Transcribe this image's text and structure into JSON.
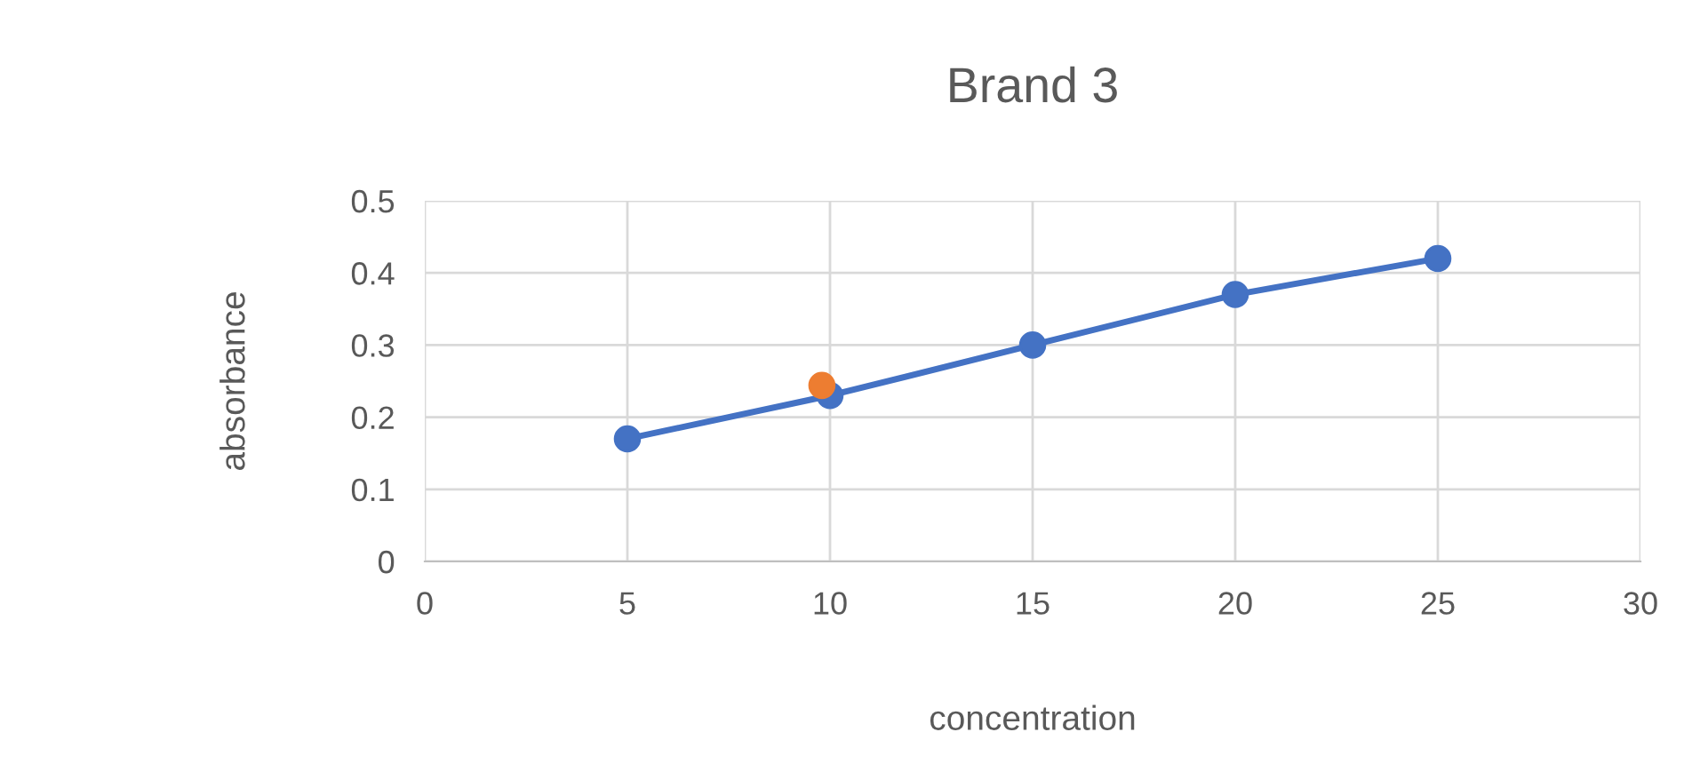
{
  "chart_data": {
    "type": "line",
    "title": "Brand 3",
    "xlabel": "concentration",
    "ylabel": "absorbance",
    "xlim": [
      0,
      30
    ],
    "xticks": [
      0,
      5,
      10,
      15,
      20,
      25,
      30
    ],
    "ylim": [
      0,
      0.5
    ],
    "yticks": [
      0,
      0.1,
      0.2,
      0.3,
      0.4,
      0.5
    ],
    "grid": true,
    "legend": false,
    "marker": "circle",
    "line_style": "solid",
    "series": [
      {
        "color": "#4472c4",
        "x": [
          5,
          10,
          15,
          20,
          25
        ],
        "values": [
          0.17,
          0.23,
          0.3,
          0.37,
          0.42
        ]
      },
      {
        "type": "scatter",
        "color": "#ed7d31",
        "x": [
          9.8
        ],
        "values": [
          0.244
        ]
      }
    ]
  }
}
